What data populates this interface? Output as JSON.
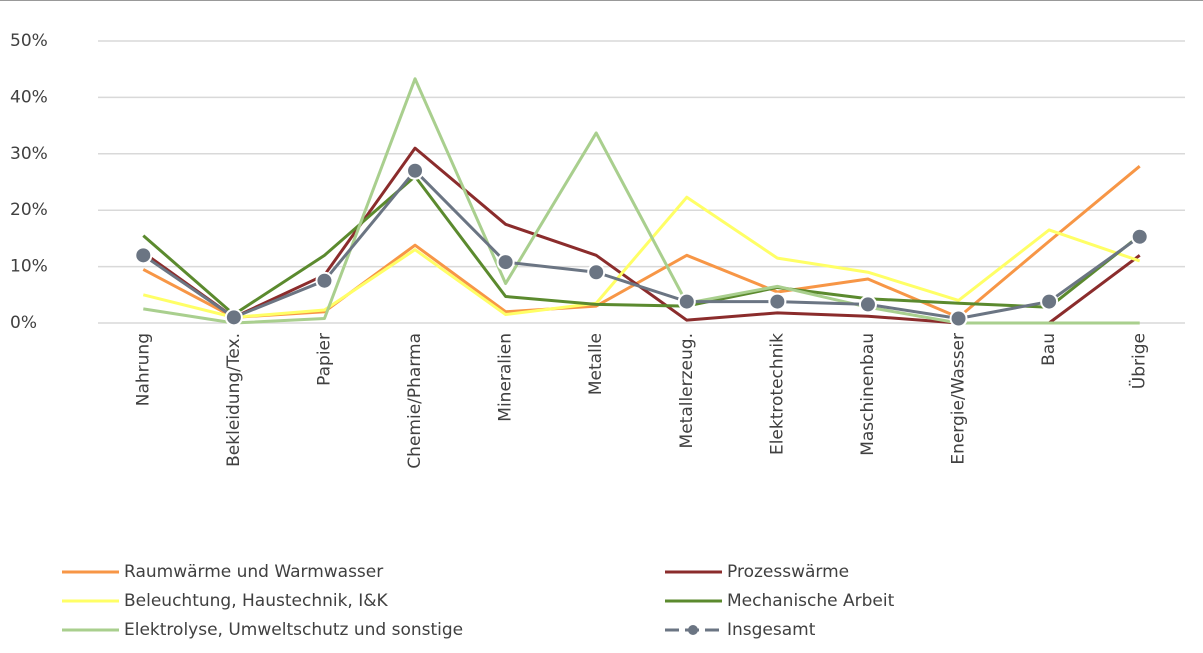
{
  "chart_data": {
    "type": "line",
    "categories": [
      "Nahrung",
      "Bekleidung/Tex.",
      "Papier",
      "Chemie/Pharma",
      "Mineralien",
      "Metalle",
      "Metallerzeug.",
      "Elektrotechnik",
      "Maschinenbau",
      "Energie/Wasser",
      "Bau",
      "Übrige"
    ],
    "series": [
      {
        "name": "Raumwärme und Warmwasser",
        "color": "#f79646",
        "values": [
          9.5,
          1,
          2,
          13.8,
          2,
          3,
          12,
          5.5,
          7.8,
          1,
          14.5,
          27.8
        ]
      },
      {
        "name": "Prozesswärme",
        "color": "#8b2c2c",
        "values": [
          12.5,
          1,
          8.5,
          31,
          17.5,
          12,
          0.5,
          1.8,
          1.2,
          0,
          0,
          12
        ]
      },
      {
        "name": "Beleuchtung, Haustechnik, I&K",
        "color": "#ffff66",
        "values": [
          5,
          1,
          2.3,
          13,
          1.5,
          3.5,
          22.3,
          11.5,
          9,
          4,
          16.5,
          11
        ]
      },
      {
        "name": "Mechanische Arbeit",
        "color": "#5b8a2e",
        "values": [
          15.5,
          1.5,
          12,
          26,
          4.7,
          3.3,
          3,
          6.3,
          4.3,
          3.5,
          2.8,
          15.5
        ]
      },
      {
        "name": "Elektrolyse, Umweltschutz und sonstige",
        "color": "#a9cf8e",
        "values": [
          2.5,
          0,
          0.8,
          43.3,
          7,
          33.7,
          3.5,
          6.5,
          2.8,
          0,
          0,
          0
        ]
      },
      {
        "name": "Insgesamt",
        "color": "#6b7583",
        "markers": true,
        "values": [
          12,
          1,
          7.5,
          27,
          10.8,
          9,
          3.8,
          3.8,
          3.3,
          0.8,
          3.8,
          15.3
        ]
      }
    ],
    "ylim": [
      0,
      50
    ],
    "yticks": [
      {
        "value": 0,
        "label": "0%"
      },
      {
        "value": 10,
        "label": "10%"
      },
      {
        "value": 20,
        "label": "20%"
      },
      {
        "value": 30,
        "label": "30%"
      },
      {
        "value": 40,
        "label": "40%"
      },
      {
        "value": 50,
        "label": "50%"
      }
    ],
    "grid": true
  }
}
